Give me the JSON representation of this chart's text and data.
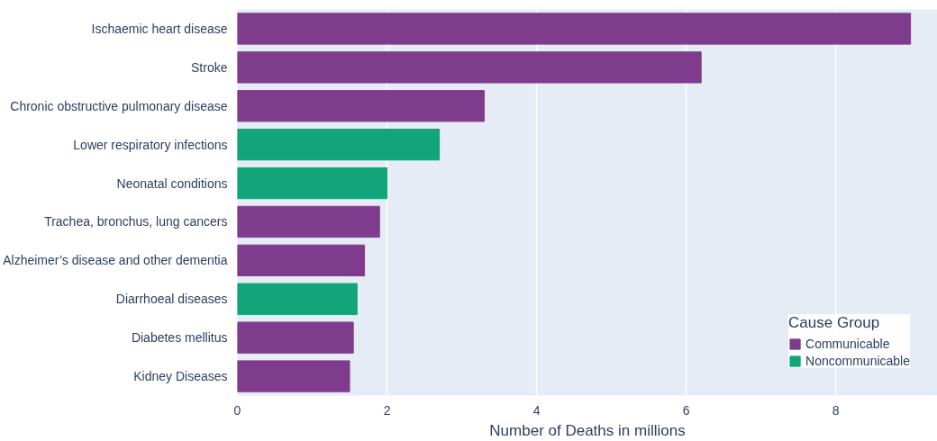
{
  "chart_data": {
    "type": "bar",
    "orientation": "horizontal",
    "xlabel": "Number of Deaths in millions",
    "legend_title": "Cause Group",
    "categories": [
      "Ischaemic heart disease",
      "Stroke",
      "Chronic obstructive pulmonary disease",
      "Lower respiratory infections",
      "Neonatal conditions",
      "Trachea, bronchus, lung cancers",
      "Alzheimer’s disease and other dementia",
      "Diarrhoeal diseases",
      "Diabetes mellitus",
      "Kidney Diseases"
    ],
    "series": [
      {
        "name": "Communicable",
        "color": "#7f3c8d",
        "values": [
          9.0,
          6.2,
          3.3,
          null,
          null,
          1.9,
          1.7,
          null,
          1.55,
          1.5
        ]
      },
      {
        "name": "Noncommunicable",
        "color": "#11a579",
        "values": [
          null,
          null,
          null,
          2.7,
          2.0,
          null,
          null,
          1.6,
          null,
          null
        ]
      }
    ],
    "xlim": [
      0,
      9.36
    ],
    "xticks": [
      0,
      2,
      4,
      6,
      8
    ],
    "grid": "x",
    "legend": "bottom right"
  }
}
